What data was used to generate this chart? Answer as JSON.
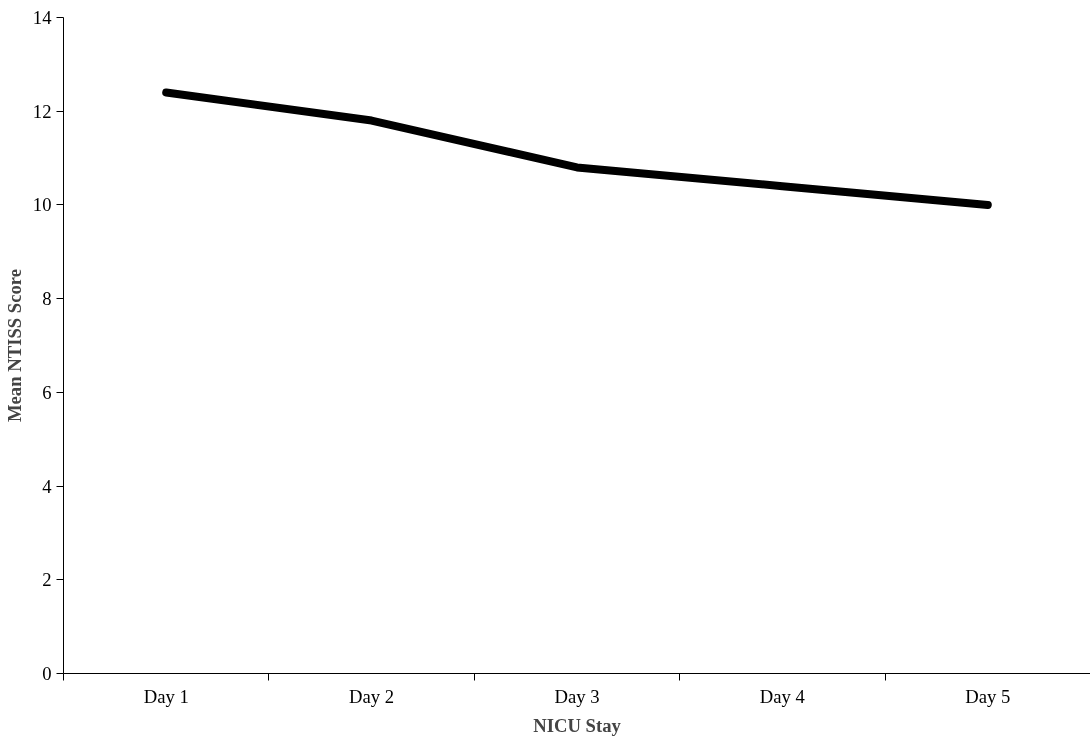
{
  "chart_data": {
    "type": "line",
    "xlabel": "NICU Stay",
    "ylabel": "Mean NTISS Score",
    "categories": [
      "Day 1",
      "Day 2",
      "Day 3",
      "Day 4",
      "Day 5"
    ],
    "series": [
      {
        "color": "#000000",
        "values": [
          12.4,
          11.8,
          10.8,
          10.4,
          10.0
        ]
      }
    ],
    "ylim": [
      0,
      14
    ],
    "yticks": [
      0,
      2,
      4,
      6,
      8,
      10,
      12,
      14
    ],
    "grid": false,
    "marker": "none",
    "line_style": "solid"
  }
}
